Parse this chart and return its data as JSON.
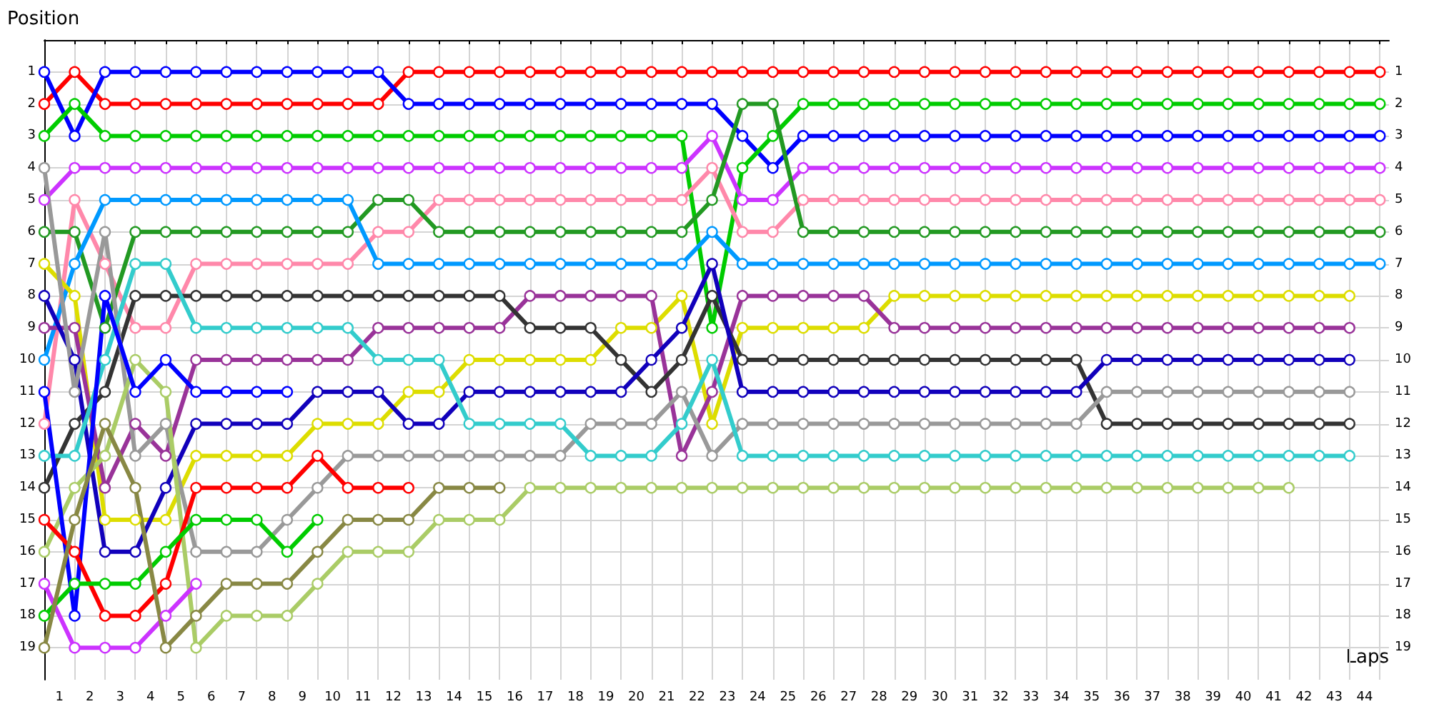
{
  "chart_data": {
    "type": "line",
    "ylabel": "Position",
    "xlabel": "Laps",
    "marker": "circle",
    "line_style": "solid",
    "grid": true,
    "x": [
      0,
      1,
      2,
      3,
      4,
      5,
      6,
      7,
      8,
      9,
      10,
      11,
      12,
      13,
      14,
      15,
      16,
      17,
      18,
      19,
      20,
      21,
      22,
      23,
      24,
      25,
      26,
      27,
      28,
      29,
      30,
      31,
      32,
      33,
      34,
      35,
      36,
      37,
      38,
      39,
      40,
      41,
      42,
      43,
      44
    ],
    "xlim": [
      0,
      44.3
    ],
    "xticks": [
      {
        "value": 0,
        "label": null
      },
      {
        "value": 1,
        "label": null
      },
      {
        "value": 2,
        "label": null
      },
      {
        "value": 3,
        "label": null
      },
      {
        "value": 4,
        "label": null
      },
      {
        "value": 5,
        "label": null
      },
      {
        "value": 6,
        "label": null
      },
      {
        "value": 7,
        "label": null
      },
      {
        "value": 8,
        "label": null
      },
      {
        "value": 9,
        "label": null
      },
      {
        "value": 10,
        "label": null
      },
      {
        "value": 11,
        "label": null
      },
      {
        "value": 12,
        "label": null
      },
      {
        "value": 13,
        "label": null
      },
      {
        "value": 14,
        "label": null
      },
      {
        "value": 15,
        "label": null
      },
      {
        "value": 16,
        "label": null
      },
      {
        "value": 17,
        "label": null
      },
      {
        "value": 18,
        "label": null
      },
      {
        "value": 19,
        "label": null
      },
      {
        "value": 20,
        "label": null
      },
      {
        "value": 21,
        "label": null
      },
      {
        "value": 22,
        "label": null
      },
      {
        "value": 23,
        "label": null
      },
      {
        "value": 24,
        "label": null
      },
      {
        "value": 25,
        "label": null
      },
      {
        "value": 26,
        "label": null
      },
      {
        "value": 27,
        "label": null
      },
      {
        "value": 28,
        "label": null
      },
      {
        "value": 29,
        "label": null
      },
      {
        "value": 30,
        "label": null
      },
      {
        "value": 31,
        "label": null
      },
      {
        "value": 32,
        "label": null
      },
      {
        "value": 33,
        "label": null
      },
      {
        "value": 34,
        "label": null
      },
      {
        "value": 35,
        "label": null
      },
      {
        "value": 36,
        "label": null
      },
      {
        "value": 37,
        "label": null
      },
      {
        "value": 38,
        "label": null
      },
      {
        "value": 39,
        "label": null
      },
      {
        "value": 40,
        "label": null
      },
      {
        "value": 41,
        "label": null
      },
      {
        "value": 42,
        "label": null
      },
      {
        "value": 43,
        "label": null
      },
      {
        "value": 44,
        "label": null
      },
      {
        "value": 0.5,
        "label": "1"
      },
      {
        "value": 1.5,
        "label": "2"
      },
      {
        "value": 2.5,
        "label": "3"
      },
      {
        "value": 3.5,
        "label": "4"
      },
      {
        "value": 4.5,
        "label": "5"
      },
      {
        "value": 5.5,
        "label": "6"
      },
      {
        "value": 6.5,
        "label": "7"
      },
      {
        "value": 7.5,
        "label": "8"
      },
      {
        "value": 8.5,
        "label": "9"
      },
      {
        "value": 9.5,
        "label": "10"
      },
      {
        "value": 10.5,
        "label": "11"
      },
      {
        "value": 11.5,
        "label": "12"
      },
      {
        "value": 12.5,
        "label": "13"
      },
      {
        "value": 13.5,
        "label": "14"
      },
      {
        "value": 14.5,
        "label": "15"
      },
      {
        "value": 15.5,
        "label": "16"
      },
      {
        "value": 16.5,
        "label": "17"
      },
      {
        "value": 17.5,
        "label": "18"
      },
      {
        "value": 18.5,
        "label": "19"
      },
      {
        "value": 19.5,
        "label": "20"
      },
      {
        "value": 20.5,
        "label": "21"
      },
      {
        "value": 21.5,
        "label": "22"
      },
      {
        "value": 22.5,
        "label": "23"
      },
      {
        "value": 23.5,
        "label": "24"
      },
      {
        "value": 24.5,
        "label": "25"
      },
      {
        "value": 25.5,
        "label": "26"
      },
      {
        "value": 26.5,
        "label": "27"
      },
      {
        "value": 27.5,
        "label": "28"
      },
      {
        "value": 28.5,
        "label": "29"
      },
      {
        "value": 29.5,
        "label": "30"
      },
      {
        "value": 30.5,
        "label": "31"
      },
      {
        "value": 31.5,
        "label": "32"
      },
      {
        "value": 32.5,
        "label": "33"
      },
      {
        "value": 33.5,
        "label": "34"
      },
      {
        "value": 34.5,
        "label": "35"
      },
      {
        "value": 35.5,
        "label": "36"
      },
      {
        "value": 36.5,
        "label": "37"
      },
      {
        "value": 37.5,
        "label": "38"
      },
      {
        "value": 38.5,
        "label": "39"
      },
      {
        "value": 39.5,
        "label": "40"
      },
      {
        "value": 40.5,
        "label": "41"
      },
      {
        "value": 41.5,
        "label": "42"
      },
      {
        "value": 42.5,
        "label": "43"
      },
      {
        "value": 43.5,
        "label": "44"
      }
    ],
    "ylim": [
      20,
      0
    ],
    "yticks": [
      1,
      2,
      3,
      4,
      5,
      6,
      7,
      8,
      9,
      10,
      11,
      12,
      13,
      14,
      15,
      16,
      17,
      18,
      19
    ],
    "y2lim": [
      20,
      0
    ],
    "y2ticks": [
      1,
      2,
      3,
      4,
      5,
      6,
      7,
      8,
      9,
      10,
      11,
      12,
      13,
      14,
      15,
      16,
      17,
      18,
      19
    ],
    "series": [
      {
        "color": "#ff0000",
        "values": [
          2,
          1,
          2,
          2,
          2,
          2,
          2,
          2,
          2,
          2,
          2,
          2,
          1,
          1,
          1,
          1,
          1,
          1,
          1,
          1,
          1,
          1,
          1,
          1,
          1,
          1,
          1,
          1,
          1,
          1,
          1,
          1,
          1,
          1,
          1,
          1,
          1,
          1,
          1,
          1,
          1,
          1,
          1,
          1,
          1
        ]
      },
      {
        "color": "#0000ff",
        "values": [
          1,
          3,
          1,
          1,
          1,
          1,
          1,
          1,
          1,
          1,
          1,
          1,
          2,
          2,
          2,
          2,
          2,
          2,
          2,
          2,
          2,
          2,
          2,
          3,
          4,
          3,
          3,
          3,
          3,
          3,
          3,
          3,
          3,
          3,
          3,
          3,
          3,
          3,
          3,
          3,
          3,
          3,
          3,
          3,
          3
        ]
      },
      {
        "color": "#00cc00",
        "values": [
          3,
          2,
          3,
          3,
          3,
          3,
          3,
          3,
          3,
          3,
          3,
          3,
          3,
          3,
          3,
          3,
          3,
          3,
          3,
          3,
          3,
          3,
          9,
          4,
          3,
          2,
          2,
          2,
          2,
          2,
          2,
          2,
          2,
          2,
          2,
          2,
          2,
          2,
          2,
          2,
          2,
          2,
          2,
          2,
          2
        ]
      },
      {
        "color": "#cc33ff",
        "values": [
          5,
          4,
          4,
          4,
          4,
          4,
          4,
          4,
          4,
          4,
          4,
          4,
          4,
          4,
          4,
          4,
          4,
          4,
          4,
          4,
          4,
          4,
          3,
          5,
          5,
          4,
          4,
          4,
          4,
          4,
          4,
          4,
          4,
          4,
          4,
          4,
          4,
          4,
          4,
          4,
          4,
          4,
          4,
          4,
          4
        ]
      },
      {
        "color": "#ff88aa",
        "values": [
          12,
          5,
          7,
          9,
          9,
          7,
          7,
          7,
          7,
          7,
          7,
          6,
          6,
          5,
          5,
          5,
          5,
          5,
          5,
          5,
          5,
          5,
          4,
          6,
          6,
          5,
          5,
          5,
          5,
          5,
          5,
          5,
          5,
          5,
          5,
          5,
          5,
          5,
          5,
          5,
          5,
          5,
          5,
          5,
          5
        ]
      },
      {
        "color": "#229922",
        "values": [
          6,
          6,
          9,
          6,
          6,
          6,
          6,
          6,
          6,
          6,
          6,
          5,
          5,
          6,
          6,
          6,
          6,
          6,
          6,
          6,
          6,
          6,
          5,
          2,
          2,
          6,
          6,
          6,
          6,
          6,
          6,
          6,
          6,
          6,
          6,
          6,
          6,
          6,
          6,
          6,
          6,
          6,
          6,
          6,
          6
        ]
      },
      {
        "color": "#0099ff",
        "values": [
          10,
          7,
          5,
          5,
          5,
          5,
          5,
          5,
          5,
          5,
          5,
          7,
          7,
          7,
          7,
          7,
          7,
          7,
          7,
          7,
          7,
          7,
          6,
          7,
          7,
          7,
          7,
          7,
          7,
          7,
          7,
          7,
          7,
          7,
          7,
          7,
          7,
          7,
          7,
          7,
          7,
          7,
          7,
          7,
          7
        ]
      },
      {
        "color": "#dddd00",
        "values": [
          7,
          8,
          15,
          15,
          15,
          13,
          13,
          13,
          13,
          12,
          12,
          12,
          11,
          11,
          10,
          10,
          10,
          10,
          10,
          9,
          9,
          8,
          12,
          9,
          9,
          9,
          9,
          9,
          8,
          8,
          8,
          8,
          8,
          8,
          8,
          8,
          8,
          8,
          8,
          8,
          8,
          8,
          8,
          8,
          null
        ]
      },
      {
        "color": "#993399",
        "values": [
          9,
          9,
          14,
          12,
          13,
          10,
          10,
          10,
          10,
          10,
          10,
          9,
          9,
          9,
          9,
          9,
          8,
          8,
          8,
          8,
          8,
          13,
          11,
          8,
          8,
          8,
          8,
          8,
          9,
          9,
          9,
          9,
          9,
          9,
          9,
          9,
          9,
          9,
          9,
          9,
          9,
          9,
          9,
          9,
          null
        ]
      },
      {
        "color": "#333333",
        "values": [
          14,
          12,
          11,
          8,
          8,
          8,
          8,
          8,
          8,
          8,
          8,
          8,
          8,
          8,
          8,
          8,
          9,
          9,
          9,
          10,
          11,
          10,
          8,
          10,
          10,
          10,
          10,
          10,
          10,
          10,
          10,
          10,
          10,
          10,
          10,
          12,
          12,
          12,
          12,
          12,
          12,
          12,
          12,
          12,
          null
        ]
      },
      {
        "color": "#1100bb",
        "values": [
          8,
          10,
          16,
          16,
          14,
          12,
          12,
          12,
          12,
          11,
          11,
          11,
          12,
          12,
          11,
          11,
          11,
          11,
          11,
          11,
          10,
          9,
          7,
          11,
          11,
          11,
          11,
          11,
          11,
          11,
          11,
          11,
          11,
          11,
          11,
          10,
          10,
          10,
          10,
          10,
          10,
          10,
          10,
          10,
          null
        ]
      },
      {
        "color": "#999999",
        "values": [
          4,
          11,
          6,
          13,
          12,
          16,
          16,
          16,
          15,
          14,
          13,
          13,
          13,
          13,
          13,
          13,
          13,
          13,
          12,
          12,
          12,
          11,
          13,
          12,
          12,
          12,
          12,
          12,
          12,
          12,
          12,
          12,
          12,
          12,
          12,
          11,
          11,
          11,
          11,
          11,
          11,
          11,
          11,
          11,
          null
        ]
      },
      {
        "color": "#33cccc",
        "values": [
          13,
          13,
          10,
          7,
          7,
          9,
          9,
          9,
          9,
          9,
          9,
          10,
          10,
          10,
          12,
          12,
          12,
          12,
          13,
          13,
          13,
          12,
          10,
          13,
          13,
          13,
          13,
          13,
          13,
          13,
          13,
          13,
          13,
          13,
          13,
          13,
          13,
          13,
          13,
          13,
          13,
          13,
          13,
          13,
          null
        ]
      },
      {
        "color": "#aacc66",
        "values": [
          16,
          14,
          13,
          10,
          11,
          19,
          18,
          18,
          18,
          17,
          16,
          16,
          16,
          15,
          15,
          15,
          14,
          14,
          14,
          14,
          14,
          14,
          14,
          14,
          14,
          14,
          14,
          14,
          14,
          14,
          14,
          14,
          14,
          14,
          14,
          14,
          14,
          14,
          14,
          14,
          14,
          14,
          null,
          null,
          null
        ]
      },
      {
        "color": "#0000ff",
        "values": [
          11,
          18,
          8,
          11,
          10,
          11,
          11,
          11,
          11,
          null,
          null,
          null,
          null,
          null,
          null,
          null,
          null,
          null,
          null,
          null,
          null,
          null,
          null,
          null,
          null,
          null,
          null,
          null,
          null,
          null,
          null,
          null,
          null,
          null,
          null,
          null,
          null,
          null,
          null,
          null,
          null,
          null,
          null,
          null,
          null
        ]
      },
      {
        "color": "#ff0000",
        "values": [
          15,
          16,
          18,
          18,
          17,
          14,
          14,
          14,
          14,
          13,
          14,
          14,
          14,
          null,
          null,
          null,
          null,
          null,
          null,
          null,
          null,
          null,
          null,
          null,
          null,
          null,
          null,
          null,
          null,
          null,
          null,
          null,
          null,
          null,
          null,
          null,
          null,
          null,
          null,
          null,
          null,
          null,
          null,
          null,
          null
        ]
      },
      {
        "color": "#00cc00",
        "values": [
          18,
          17,
          17,
          17,
          16,
          15,
          15,
          15,
          16,
          15,
          null,
          null,
          null,
          null,
          null,
          null,
          null,
          null,
          null,
          null,
          null,
          null,
          null,
          null,
          null,
          null,
          null,
          null,
          null,
          null,
          null,
          null,
          null,
          null,
          null,
          null,
          null,
          null,
          null,
          null,
          null,
          null,
          null,
          null,
          null
        ]
      },
      {
        "color": "#cc33ff",
        "values": [
          17,
          19,
          19,
          19,
          18,
          17,
          null,
          null,
          null,
          null,
          null,
          null,
          null,
          null,
          null,
          null,
          null,
          null,
          null,
          null,
          null,
          null,
          null,
          null,
          null,
          null,
          null,
          null,
          null,
          null,
          null,
          null,
          null,
          null,
          null,
          null,
          null,
          null,
          null,
          null,
          null,
          null,
          null,
          null,
          null
        ]
      },
      {
        "color": "#888844",
        "values": [
          19,
          15,
          12,
          14,
          19,
          18,
          17,
          17,
          17,
          16,
          15,
          15,
          15,
          14,
          14,
          14,
          null,
          null,
          null,
          null,
          null,
          null,
          null,
          null,
          null,
          null,
          null,
          null,
          null,
          null,
          null,
          null,
          null,
          null,
          null,
          null,
          null,
          null,
          null,
          null,
          null,
          null,
          null,
          null,
          null
        ]
      }
    ]
  }
}
